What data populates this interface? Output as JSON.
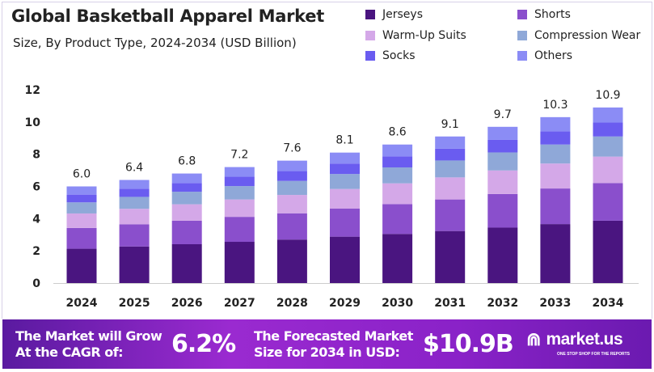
{
  "chart_data": {
    "type": "bar",
    "stacked": true,
    "title": "Global Basketball Apparel Market",
    "subtitle": "Size, By Product Type, 2024-2034 (USD Billion)",
    "xlabel": "",
    "ylabel": "",
    "ylim": [
      0,
      12
    ],
    "yticks": [
      0,
      2,
      4,
      6,
      8,
      10,
      12
    ],
    "grid": false,
    "legend_position": "top-right",
    "categories": [
      "2024",
      "2025",
      "2026",
      "2027",
      "2028",
      "2029",
      "2030",
      "2031",
      "2032",
      "2033",
      "2034"
    ],
    "totals": [
      "6.0",
      "6.4",
      "6.8",
      "7.2",
      "7.6",
      "8.1",
      "8.6",
      "9.1",
      "9.7",
      "10.3",
      "10.9"
    ],
    "series": [
      {
        "name": "Jerseys",
        "color": "#4a1580",
        "values": [
          2.13,
          2.27,
          2.41,
          2.56,
          2.7,
          2.88,
          3.05,
          3.23,
          3.44,
          3.66,
          3.87
        ]
      },
      {
        "name": "Shorts",
        "color": "#8a4fcc",
        "values": [
          1.29,
          1.38,
          1.46,
          1.55,
          1.63,
          1.74,
          1.85,
          1.96,
          2.09,
          2.21,
          2.34
        ]
      },
      {
        "name": "Warm-Up Suits",
        "color": "#d4a8e8",
        "values": [
          0.9,
          0.96,
          1.02,
          1.08,
          1.14,
          1.22,
          1.29,
          1.37,
          1.46,
          1.55,
          1.64
        ]
      },
      {
        "name": "Compression Wear",
        "color": "#8fa8d8",
        "values": [
          0.69,
          0.74,
          0.78,
          0.83,
          0.87,
          0.93,
          0.99,
          1.05,
          1.12,
          1.18,
          1.25
        ]
      },
      {
        "name": "Socks",
        "color": "#6a5cf0",
        "values": [
          0.48,
          0.51,
          0.54,
          0.58,
          0.61,
          0.65,
          0.69,
          0.73,
          0.78,
          0.82,
          0.87
        ]
      },
      {
        "name": "Others",
        "color": "#8b8cf5",
        "values": [
          0.51,
          0.54,
          0.59,
          0.6,
          0.65,
          0.68,
          0.73,
          0.76,
          0.81,
          0.88,
          0.93
        ]
      }
    ]
  },
  "banner": {
    "cagr_label_1": "The Market will Grow",
    "cagr_label_2": "At the CAGR of:",
    "cagr_value": "6.2%",
    "forecast_label_1": "The Forecasted Market",
    "forecast_label_2": "Size for 2034 in USD:",
    "forecast_value": "$10.9B",
    "brand": "market.us",
    "brand_tagline": "ONE STOP SHOP FOR THE REPORTS"
  }
}
